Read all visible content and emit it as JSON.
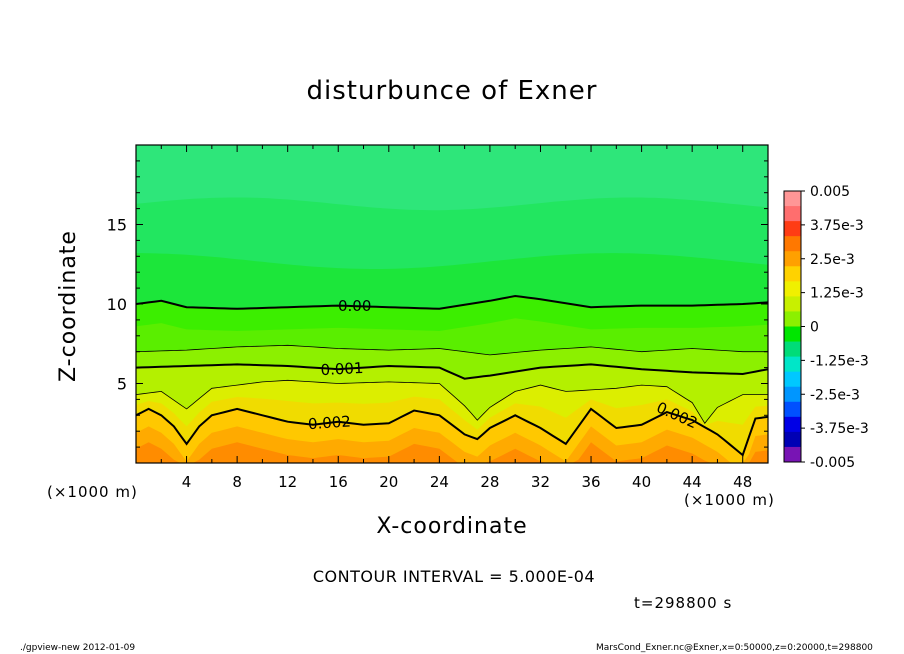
{
  "chart_data": {
    "type": "heatmap",
    "title": "disturbunce of Exner",
    "xlabel": "X-coordinate",
    "ylabel": "Z-coordinate",
    "x_unit": "(×1000 m)",
    "y_unit": "(×1000 m)",
    "xlim": [
      0,
      50
    ],
    "ylim": [
      0,
      20
    ],
    "x_ticks": [
      4,
      8,
      12,
      16,
      20,
      24,
      28,
      32,
      36,
      40,
      44,
      48
    ],
    "y_ticks": [
      5,
      10,
      15
    ],
    "colorbar": {
      "range": [
        -0.005,
        0.005
      ],
      "tick_labels": [
        "0.005",
        "3.75e-3",
        "2.5e-3",
        "1.25e-3",
        "0",
        "-1.25e-3",
        "-2.5e-3",
        "-3.75e-3",
        "-0.005"
      ],
      "tick_values": [
        0.005,
        0.00375,
        0.0025,
        0.00125,
        0,
        -0.00125,
        -0.0025,
        -0.00375,
        -0.005
      ],
      "colors_top_to_bottom": [
        "#ff9696",
        "#ff6e6e",
        "#ff3c14",
        "#ff7800",
        "#ffa000",
        "#ffd200",
        "#f0f000",
        "#c8f000",
        "#8cf000",
        "#00e600",
        "#00dc78",
        "#00e6c8",
        "#00c8ff",
        "#0096ff",
        "#0050ff",
        "#0000e6",
        "#0000b4",
        "#7814b4"
      ]
    },
    "contours": [
      {
        "label": "0.00",
        "value": 0.0,
        "x": [
          0,
          2,
          4,
          8,
          12,
          16,
          20,
          24,
          28,
          30,
          32,
          36,
          40,
          44,
          48,
          50
        ],
        "z": [
          10.0,
          10.2,
          9.8,
          9.7,
          9.8,
          9.9,
          9.8,
          9.7,
          10.2,
          10.5,
          10.3,
          9.8,
          9.9,
          9.9,
          10.0,
          10.1
        ]
      },
      {
        "label": "",
        "value": 0.0005,
        "x": [
          0,
          4,
          8,
          12,
          16,
          20,
          24,
          28,
          32,
          36,
          40,
          44,
          48,
          50
        ],
        "z": [
          7.0,
          7.1,
          7.3,
          7.4,
          7.2,
          7.1,
          7.2,
          6.8,
          7.1,
          7.3,
          7.0,
          7.2,
          7.0,
          7.0
        ]
      },
      {
        "label": "0.001",
        "value": 0.001,
        "x": [
          0,
          4,
          8,
          12,
          16,
          20,
          24,
          26,
          28,
          32,
          36,
          40,
          44,
          48,
          50
        ],
        "z": [
          6.0,
          6.1,
          6.2,
          6.1,
          5.9,
          6.1,
          6.0,
          5.3,
          5.5,
          6.0,
          6.2,
          5.9,
          5.7,
          5.6,
          5.9
        ]
      },
      {
        "label": "",
        "value": 0.0015,
        "x": [
          0,
          2,
          4,
          6,
          8,
          10,
          12,
          16,
          20,
          24,
          26,
          27,
          28,
          30,
          32,
          34,
          36,
          38,
          40,
          42,
          44,
          45,
          46,
          48,
          50
        ],
        "z": [
          4.3,
          4.5,
          3.4,
          4.7,
          4.9,
          5.1,
          5.2,
          5.0,
          5.1,
          5.0,
          3.6,
          2.7,
          3.5,
          4.5,
          4.9,
          4.5,
          4.6,
          4.7,
          4.9,
          4.8,
          3.8,
          2.5,
          3.5,
          4.3,
          4.3
        ]
      },
      {
        "label": "0.002",
        "value": 0.002,
        "x": [
          0,
          1,
          2,
          3,
          4,
          5,
          6,
          8,
          10,
          12,
          14,
          16,
          18,
          20,
          22,
          24,
          26,
          27,
          28,
          30,
          32,
          34,
          36,
          38,
          40,
          42,
          44,
          46,
          48,
          49,
          50
        ],
        "z": [
          3.0,
          3.4,
          3.0,
          2.3,
          1.2,
          2.3,
          3.0,
          3.4,
          3.0,
          2.6,
          2.4,
          2.6,
          2.4,
          2.5,
          3.3,
          3.0,
          1.8,
          1.5,
          2.2,
          3.0,
          2.2,
          1.2,
          3.4,
          2.2,
          2.4,
          3.2,
          2.7,
          1.8,
          0.5,
          2.8,
          2.9
        ]
      }
    ]
  },
  "annotations": {
    "contour_interval": "CONTOUR INTERVAL = 5.000E-04",
    "time": "t=298800 s",
    "footer_left": "./gpview-new   2012-01-09",
    "footer_right": "MarsCond_Exner.nc@Exner,x=0:50000,z=0:20000,t=298800"
  }
}
